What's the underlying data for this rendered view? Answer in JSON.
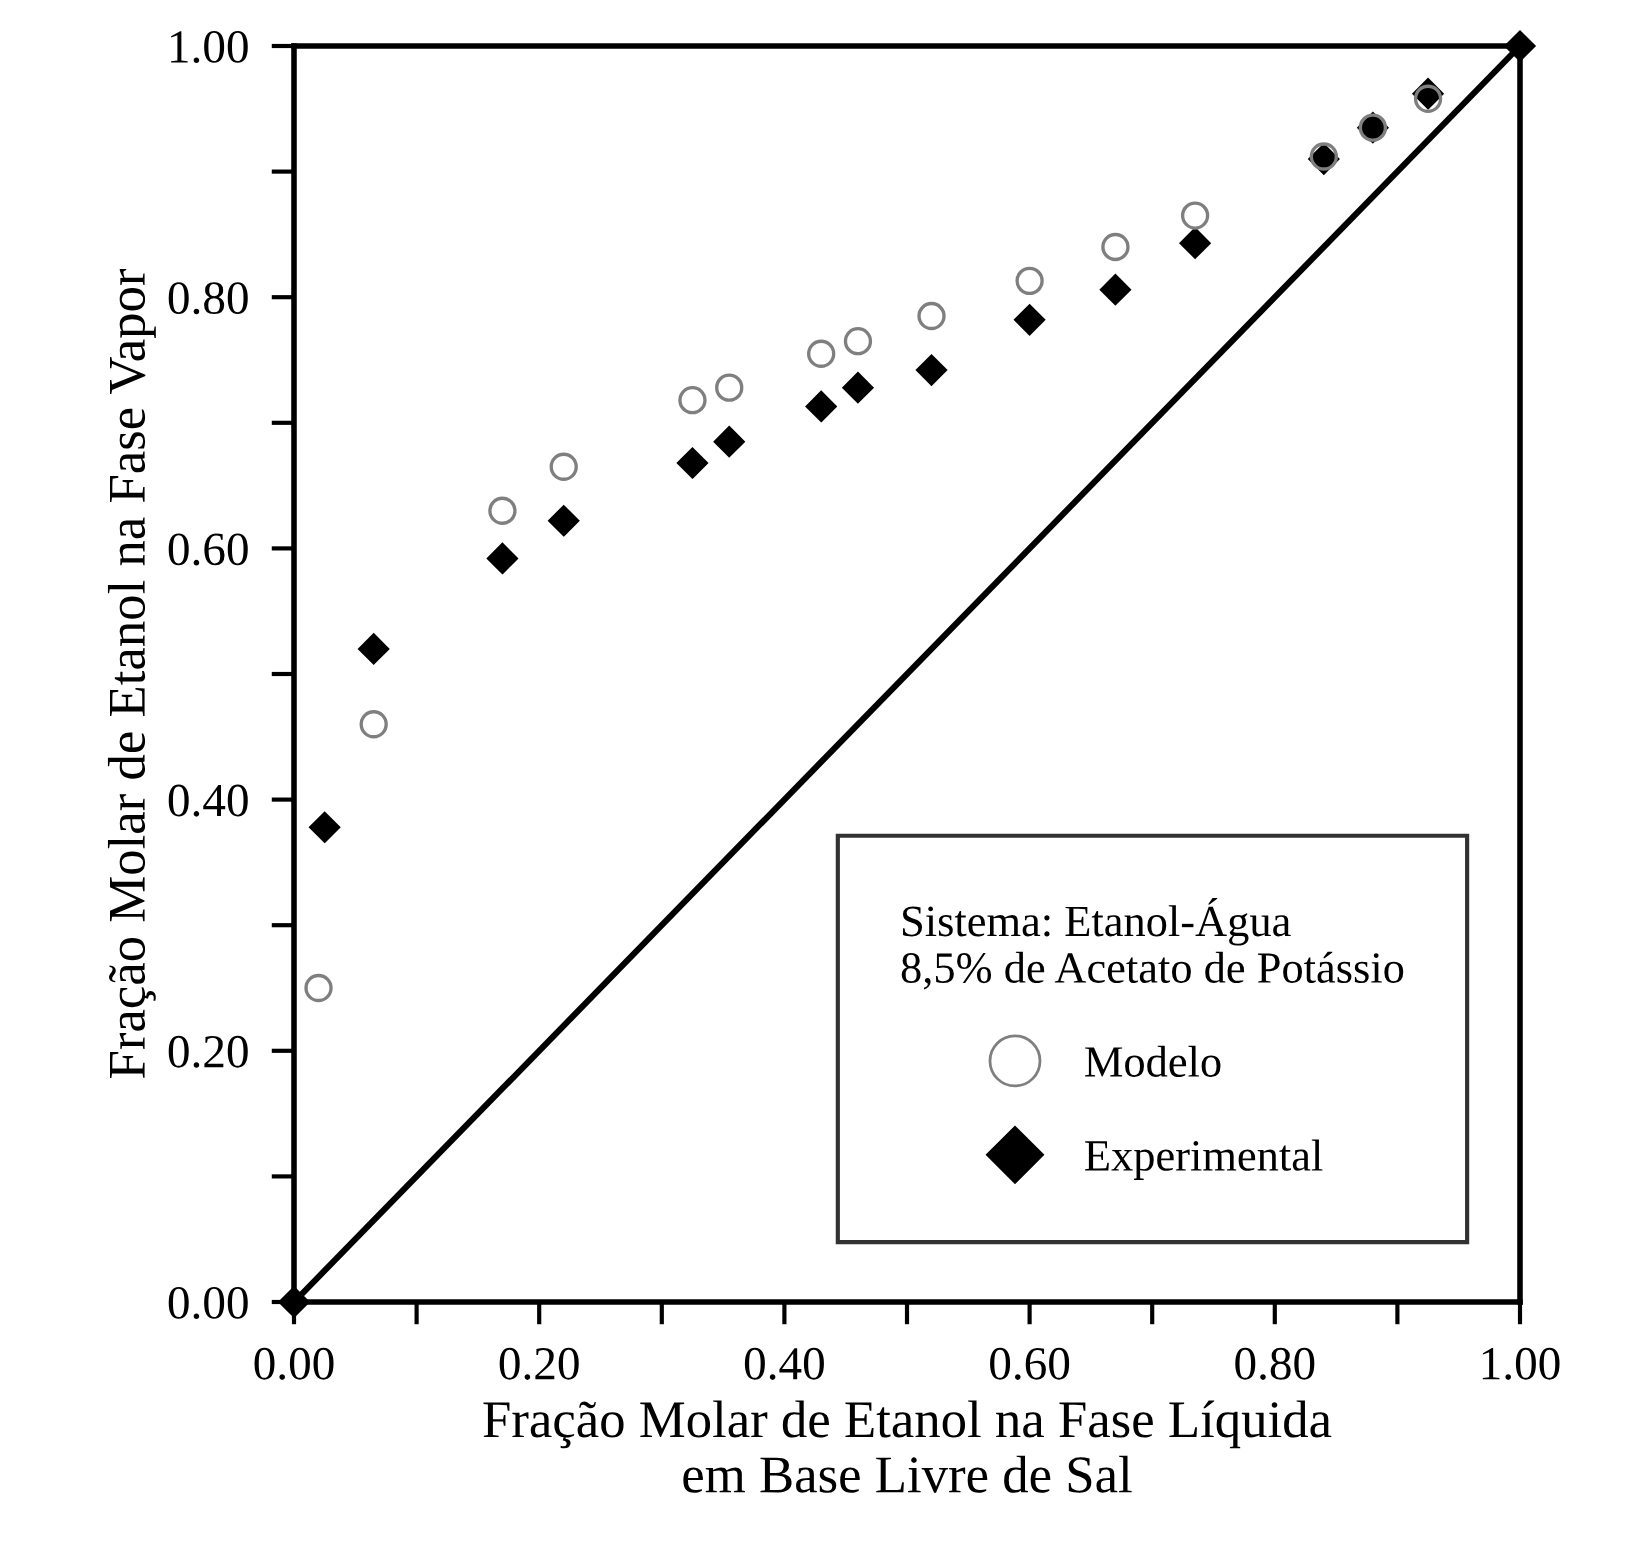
{
  "chart_data": {
    "type": "scatter",
    "xlabel": "Fração Molar de Etanol na Fase Líquida\nem Base Livre de Sal",
    "ylabel": "Fração Molar de Etanol na Fase Vapor",
    "legend_title": "Sistema: Etanol-Água\n8,5% de Acetato de Potássio",
    "legend": "bottom right",
    "grid": false,
    "xlim": [
      0,
      1
    ],
    "ylim": [
      0,
      1
    ],
    "xticks": [
      {
        "value": 0,
        "label": "0.00"
      },
      {
        "value": 0.1,
        "label": null
      },
      {
        "value": 0.2,
        "label": "0.20"
      },
      {
        "value": 0.3,
        "label": null
      },
      {
        "value": 0.4,
        "label": "0.40"
      },
      {
        "value": 0.5,
        "label": null
      },
      {
        "value": 0.6,
        "label": "0.60"
      },
      {
        "value": 0.7,
        "label": null
      },
      {
        "value": 0.8,
        "label": "0.80"
      },
      {
        "value": 0.9,
        "label": null
      },
      {
        "value": 1,
        "label": "1.00"
      }
    ],
    "yticks": [
      {
        "value": 0,
        "label": "0.00"
      },
      {
        "value": 0.1,
        "label": null
      },
      {
        "value": 0.2,
        "label": "0.20"
      },
      {
        "value": 0.3,
        "label": null
      },
      {
        "value": 0.4,
        "label": "0.40"
      },
      {
        "value": 0.5,
        "label": null
      },
      {
        "value": 0.6,
        "label": "0.60"
      },
      {
        "value": 0.7,
        "label": null
      },
      {
        "value": 0.8,
        "label": "0.80"
      },
      {
        "value": 0.9,
        "label": null
      },
      {
        "value": 1,
        "label": "1.00"
      }
    ],
    "series": [
      {
        "type": "line",
        "color": "#000000",
        "marker": "none",
        "line_style": "solid",
        "x": [
          0,
          1
        ],
        "values": [
          0,
          1
        ]
      },
      {
        "name": "Modelo",
        "marker": "circle",
        "color": "#7f7f7f",
        "x": [
          0.02,
          0.065,
          0.17,
          0.22,
          0.325,
          0.355,
          0.43,
          0.46,
          0.52,
          0.6,
          0.67,
          0.735,
          0.84,
          0.88,
          0.925
        ],
        "values": [
          0.25,
          0.46,
          0.63,
          0.665,
          0.718,
          0.728,
          0.755,
          0.765,
          0.785,
          0.813,
          0.84,
          0.865,
          0.912,
          0.935,
          0.958
        ]
      },
      {
        "name": "Experimental",
        "marker": "diamond",
        "color": "#000000",
        "x": [
          0,
          0.025,
          0.065,
          0.17,
          0.22,
          0.325,
          0.355,
          0.43,
          0.46,
          0.52,
          0.6,
          0.67,
          0.735,
          0.84,
          0.88,
          0.925,
          1
        ],
        "values": [
          0,
          0.378,
          0.52,
          0.592,
          0.622,
          0.668,
          0.685,
          0.713,
          0.728,
          0.742,
          0.782,
          0.806,
          0.843,
          0.91,
          0.935,
          0.962,
          1
        ]
      }
    ]
  }
}
